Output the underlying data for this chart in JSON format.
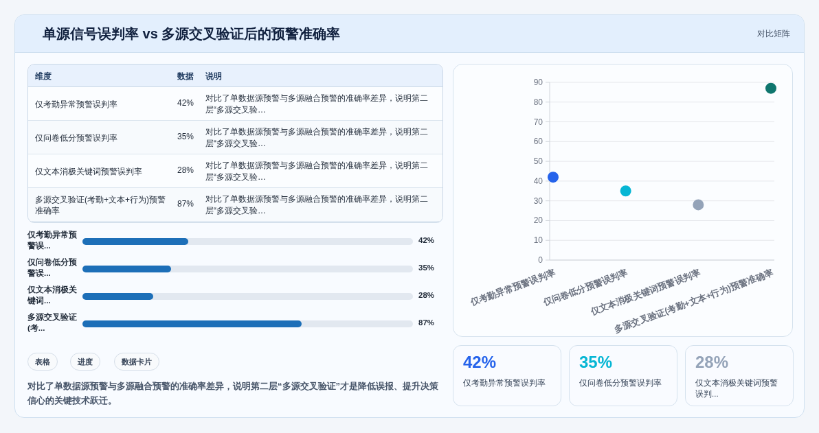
{
  "chart_data": [
    {
      "type": "other",
      "title": "单源信号误判率 vs 多源交叉验证后的预警准确率",
      "subtitle": "对比矩阵"
    },
    {
      "type": "other",
      "categories": [
        "仅考勤异常预警误判率",
        "仅问卷低分预警误判率",
        "仅文本消极关键词预警误判率",
        "多源交叉验证(考勤+文本+行为)预警准确率"
      ],
      "value_labels": [
        "42%",
        "35%",
        "28%",
        "87%"
      ],
      "annotations": [
        "维度",
        "数据",
        "说明",
        "对比了单数据源预警与多源融合预警的准确率差异，说明第二层“多源交叉验…",
        "对比了单数据源预警与多源融合预警的准确率差异，说明第二层“多源交叉验…",
        "对比了单数据源预警与多源融合预警的准确率差异，说明第二层“多源交叉验…",
        "对比了单数据源预警与多源融合预警的准确率差异，说明第二层“多源交叉验…"
      ]
    },
    {
      "type": "bar",
      "orientation": "horizontal",
      "categories": [
        "仅考勤异常预警误...",
        "仅问卷低分预警误...",
        "仅文本消极关键词...",
        "多源交叉验证(考..."
      ],
      "values": [
        42,
        35,
        28,
        87
      ],
      "value_labels": [
        "42%",
        "35%",
        "28%",
        "87%"
      ],
      "color": "#1d6fb8",
      "xlim": [
        0,
        131
      ],
      "tick_labels": false,
      "annotations": [
        "表格",
        "进度",
        "数据卡片",
        "对比了单数据源预警与多源融合预警的准确率差异，说明第二层“多源交叉验证”才是降低误报、提升决策信心的关键技术跃迁。"
      ]
    },
    {
      "type": "scatter",
      "categories": [
        "仅考勤异常预警误判率",
        "仅问卷低分预警误判率",
        "仅文本消极关键词预警误判率",
        "多源交叉验证(考勤+文本+行为)预警准确率"
      ],
      "values": [
        42,
        35,
        28,
        87
      ],
      "colors": [
        "#2563eb",
        "#06b6d4",
        "#94a3b8",
        "#0f766e"
      ],
      "ylim": [
        0,
        90
      ],
      "yticks": [
        0,
        10,
        20,
        30,
        40,
        50,
        60,
        70,
        80,
        90
      ],
      "grid": "y"
    },
    {
      "type": "other",
      "categories": [
        "仅考勤异常预警误判率",
        "仅问卷低分预警误判率",
        "仅文本消极关键词预警误判..."
      ],
      "value_labels": [
        "42%",
        "35%",
        "28%"
      ]
    }
  ]
}
